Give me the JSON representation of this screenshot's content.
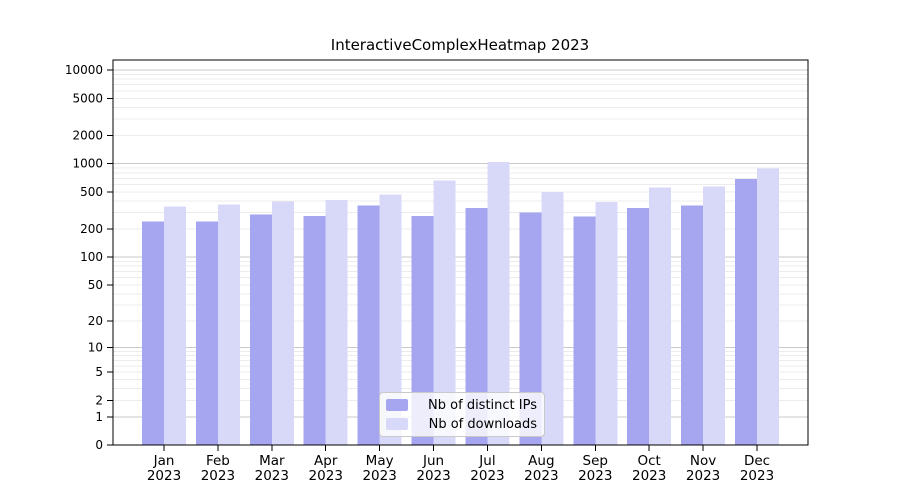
{
  "chart_data": {
    "type": "bar",
    "title": "InteractiveComplexHeatmap 2023",
    "categories": [
      "Jan 2023",
      "Feb 2023",
      "Mar 2023",
      "Apr 2023",
      "May 2023",
      "Jun 2023",
      "Jul 2023",
      "Aug 2023",
      "Sep 2023",
      "Oct 2023",
      "Nov 2023",
      "Dec 2023"
    ],
    "series": [
      {
        "name": "Nb of distinct IPs",
        "color": "#a5a5f0",
        "values": [
          242,
          240,
          286,
          276,
          357,
          277,
          336,
          301,
          272,
          335,
          357,
          690
        ]
      },
      {
        "name": "Nb of downloads",
        "color": "#d8d8f8",
        "values": [
          349,
          365,
          393,
          412,
          470,
          660,
          1050,
          500,
          390,
          560,
          568,
          885
        ]
      }
    ],
    "yscale": "symlog",
    "y_ticks": [
      0,
      1,
      2,
      5,
      10,
      20,
      50,
      100,
      200,
      500,
      1000,
      2000,
      5000,
      10000
    ],
    "ylim": [
      0,
      12800
    ],
    "xlabel": "",
    "ylabel": "",
    "grid": "horizontal major+minor",
    "legend_position": "inside bottom-center",
    "colors": {
      "major_grid": "#c9c9c9",
      "minor_grid": "#ececec",
      "axis": "#000000"
    }
  }
}
